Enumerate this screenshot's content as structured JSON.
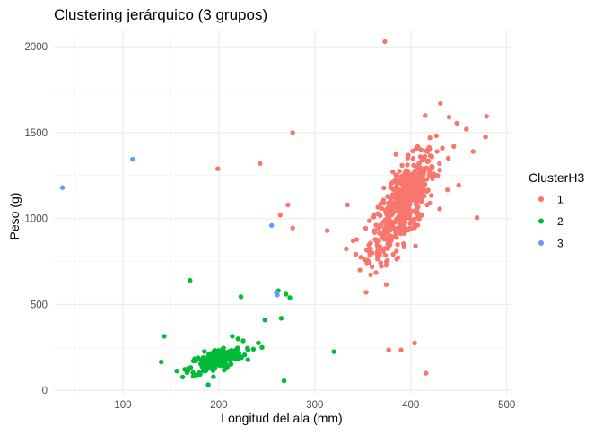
{
  "chart_data": {
    "type": "scatter",
    "title": "Clustering jerárquico (3 grupos)",
    "xlabel": "Longitud del ala (mm)",
    "ylabel": "Peso (g)",
    "xlim": [
      28,
      505
    ],
    "ylim": [
      -25,
      2095
    ],
    "x_ticks": [
      100,
      200,
      300,
      400,
      500
    ],
    "y_ticks": [
      0,
      500,
      1000,
      1500,
      2000
    ],
    "grid": true,
    "legend": {
      "title": "ClusterH3",
      "position": "right",
      "entries": [
        {
          "label": "1",
          "color": "#F8766D"
        },
        {
          "label": "2",
          "color": "#00BA38"
        },
        {
          "label": "3",
          "color": "#619CFF"
        }
      ]
    },
    "series": [
      {
        "name": "1",
        "color": "#F8766D",
        "points": [
          [
            373,
            2030
          ],
          [
            431,
            1670
          ],
          [
            479,
            1595
          ],
          [
            277,
            1500
          ],
          [
            478,
            1475
          ],
          [
            199,
            1290
          ],
          [
            243,
            1320
          ],
          [
            450,
            1195
          ],
          [
            469,
            1005
          ],
          [
            272,
            1080
          ],
          [
            264,
            1020
          ],
          [
            277,
            945
          ],
          [
            313,
            930
          ],
          [
            334,
            1080
          ],
          [
            348,
            775
          ],
          [
            357,
            745
          ],
          [
            377,
            235
          ],
          [
            390,
            235
          ],
          [
            404,
            275
          ],
          [
            416,
            100
          ],
          [
            415,
            1600
          ],
          [
            440,
            1590
          ],
          [
            448,
            1555
          ],
          [
            458,
            1520
          ],
          [
            420,
            1470
          ],
          [
            445,
            1420
          ],
          [
            430,
            1320
          ],
          [
            410,
            1360
          ],
          [
            465,
            1390
          ],
          [
            395,
            1200
          ],
          [
            340,
            870
          ],
          [
            352,
            760
          ],
          [
            365,
            790
          ],
          [
            385,
            810
          ],
          [
            405,
            840
          ]
        ],
        "cluster": {
          "center": [
            392,
            1080
          ],
          "sx": 17,
          "sy": 150,
          "rho": 0.72,
          "count": 520
        }
      },
      {
        "name": "2",
        "color": "#00BA38",
        "points": [
          [
            170,
            640
          ],
          [
            143,
            315
          ],
          [
            140,
            165
          ],
          [
            320,
            225
          ],
          [
            268,
            55
          ],
          [
            223,
            545
          ],
          [
            262,
            580
          ],
          [
            270,
            560
          ],
          [
            274,
            540
          ],
          [
            265,
            420
          ],
          [
            248,
            410
          ],
          [
            245,
            250
          ],
          [
            236,
            240
          ],
          [
            214,
            315
          ],
          [
            220,
            300
          ]
        ],
        "cluster": {
          "center": [
            197,
            175
          ],
          "sx": 14,
          "sy": 40,
          "rho": 0.6,
          "count": 190
        }
      },
      {
        "name": "3",
        "color": "#619CFF",
        "points": [
          [
            37,
            1180
          ],
          [
            110,
            1345
          ],
          [
            255,
            960
          ],
          [
            260,
            570
          ],
          [
            261,
            555
          ]
        ]
      }
    ]
  }
}
